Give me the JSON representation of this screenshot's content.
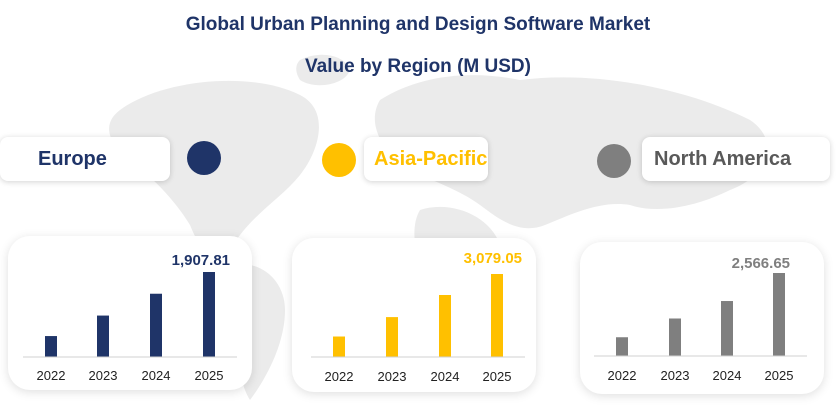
{
  "title_line1": "Global Urban Planning and Design Software Market",
  "title_line2": "Value by Region (M USD)",
  "chart_data": [
    {
      "type": "bar",
      "region": "Europe",
      "color": "#1f3468",
      "categories": [
        "2022",
        "2023",
        "2024",
        "2025"
      ],
      "values": [
        470,
        930,
        1420,
        1907.81
      ],
      "value_label": "1,907.81",
      "ylim": [
        0,
        1907.81
      ]
    },
    {
      "type": "bar",
      "region": "Asia-Pacific",
      "color": "#ffc000",
      "categories": [
        "2022",
        "2023",
        "2024",
        "2025"
      ],
      "values": [
        760,
        1480,
        2300,
        3079.05
      ],
      "value_label": "3,079.05",
      "ylim": [
        0,
        3079.05
      ]
    },
    {
      "type": "bar",
      "region": "North America",
      "color": "#7f7f7f",
      "categories": [
        "2022",
        "2023",
        "2024",
        "2025"
      ],
      "values": [
        580,
        1160,
        1700,
        2566.65
      ],
      "value_label": "2,566.65",
      "ylim": [
        0,
        2566.65
      ]
    }
  ]
}
